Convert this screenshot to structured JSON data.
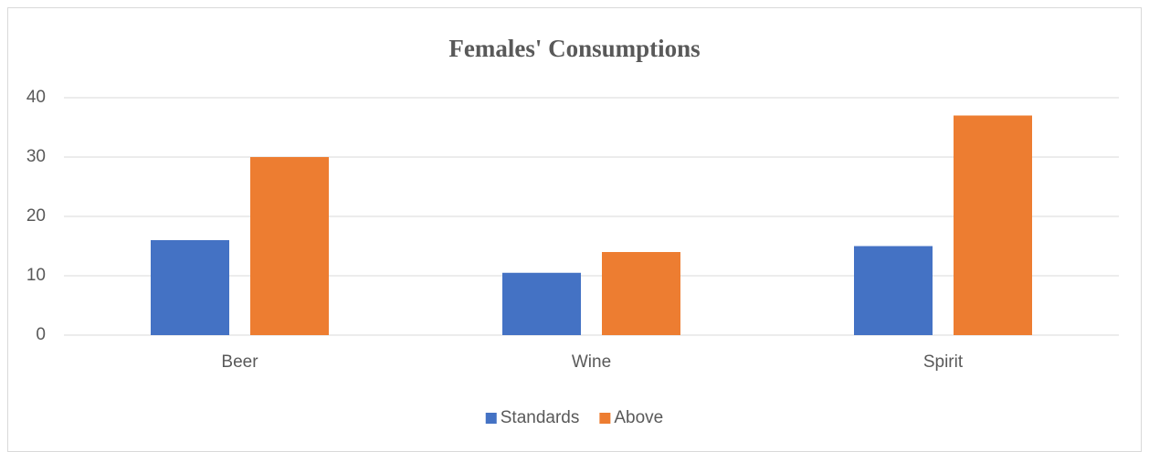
{
  "chart_data": {
    "type": "bar",
    "title": "Females' Consumptions",
    "categories": [
      "Beer",
      "Wine",
      "Spirit"
    ],
    "series": [
      {
        "name": "Standards",
        "color": "#4472c4",
        "values": [
          16,
          10.5,
          15
        ]
      },
      {
        "name": "Above",
        "color": "#ed7d31",
        "values": [
          30,
          14,
          37
        ]
      }
    ],
    "ylim": [
      0,
      40
    ],
    "yticks": [
      0,
      10,
      20,
      30,
      40
    ],
    "grid": true,
    "legend": "bottom"
  }
}
